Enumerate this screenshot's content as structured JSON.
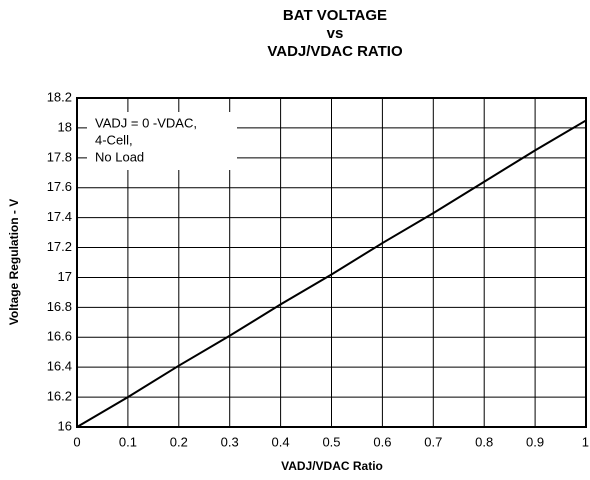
{
  "chart_data": {
    "type": "line",
    "title": [
      "BAT VOLTAGE",
      "vs",
      "VADJ/VDAC RATIO"
    ],
    "x_label": "VADJ/VDAC Ratio",
    "y_label": "Voltage Regulation - V",
    "annotation": [
      "VADJ = 0 -VDAC,",
      "4-Cell,",
      "No Load"
    ],
    "x": [
      0,
      0.1,
      0.2,
      0.3,
      0.4,
      0.5,
      0.6,
      0.7,
      0.8,
      0.9,
      1
    ],
    "series": [
      {
        "name": null,
        "color": "#000000",
        "values": [
          16,
          16.2,
          16.41,
          16.61,
          16.82,
          17.02,
          17.23,
          17.43,
          17.64,
          17.85,
          18.05
        ]
      }
    ],
    "xlim": [
      0,
      1
    ],
    "xticks": [
      0,
      0.1,
      0.2,
      0.3,
      0.4,
      0.5,
      0.6,
      0.7,
      0.8,
      0.9,
      1
    ],
    "ylim": [
      16,
      18.2
    ],
    "yticks": [
      16,
      16.2,
      16.4,
      16.6,
      16.8,
      17,
      17.2,
      17.4,
      17.6,
      17.8,
      18,
      18.2
    ],
    "grid": true
  }
}
